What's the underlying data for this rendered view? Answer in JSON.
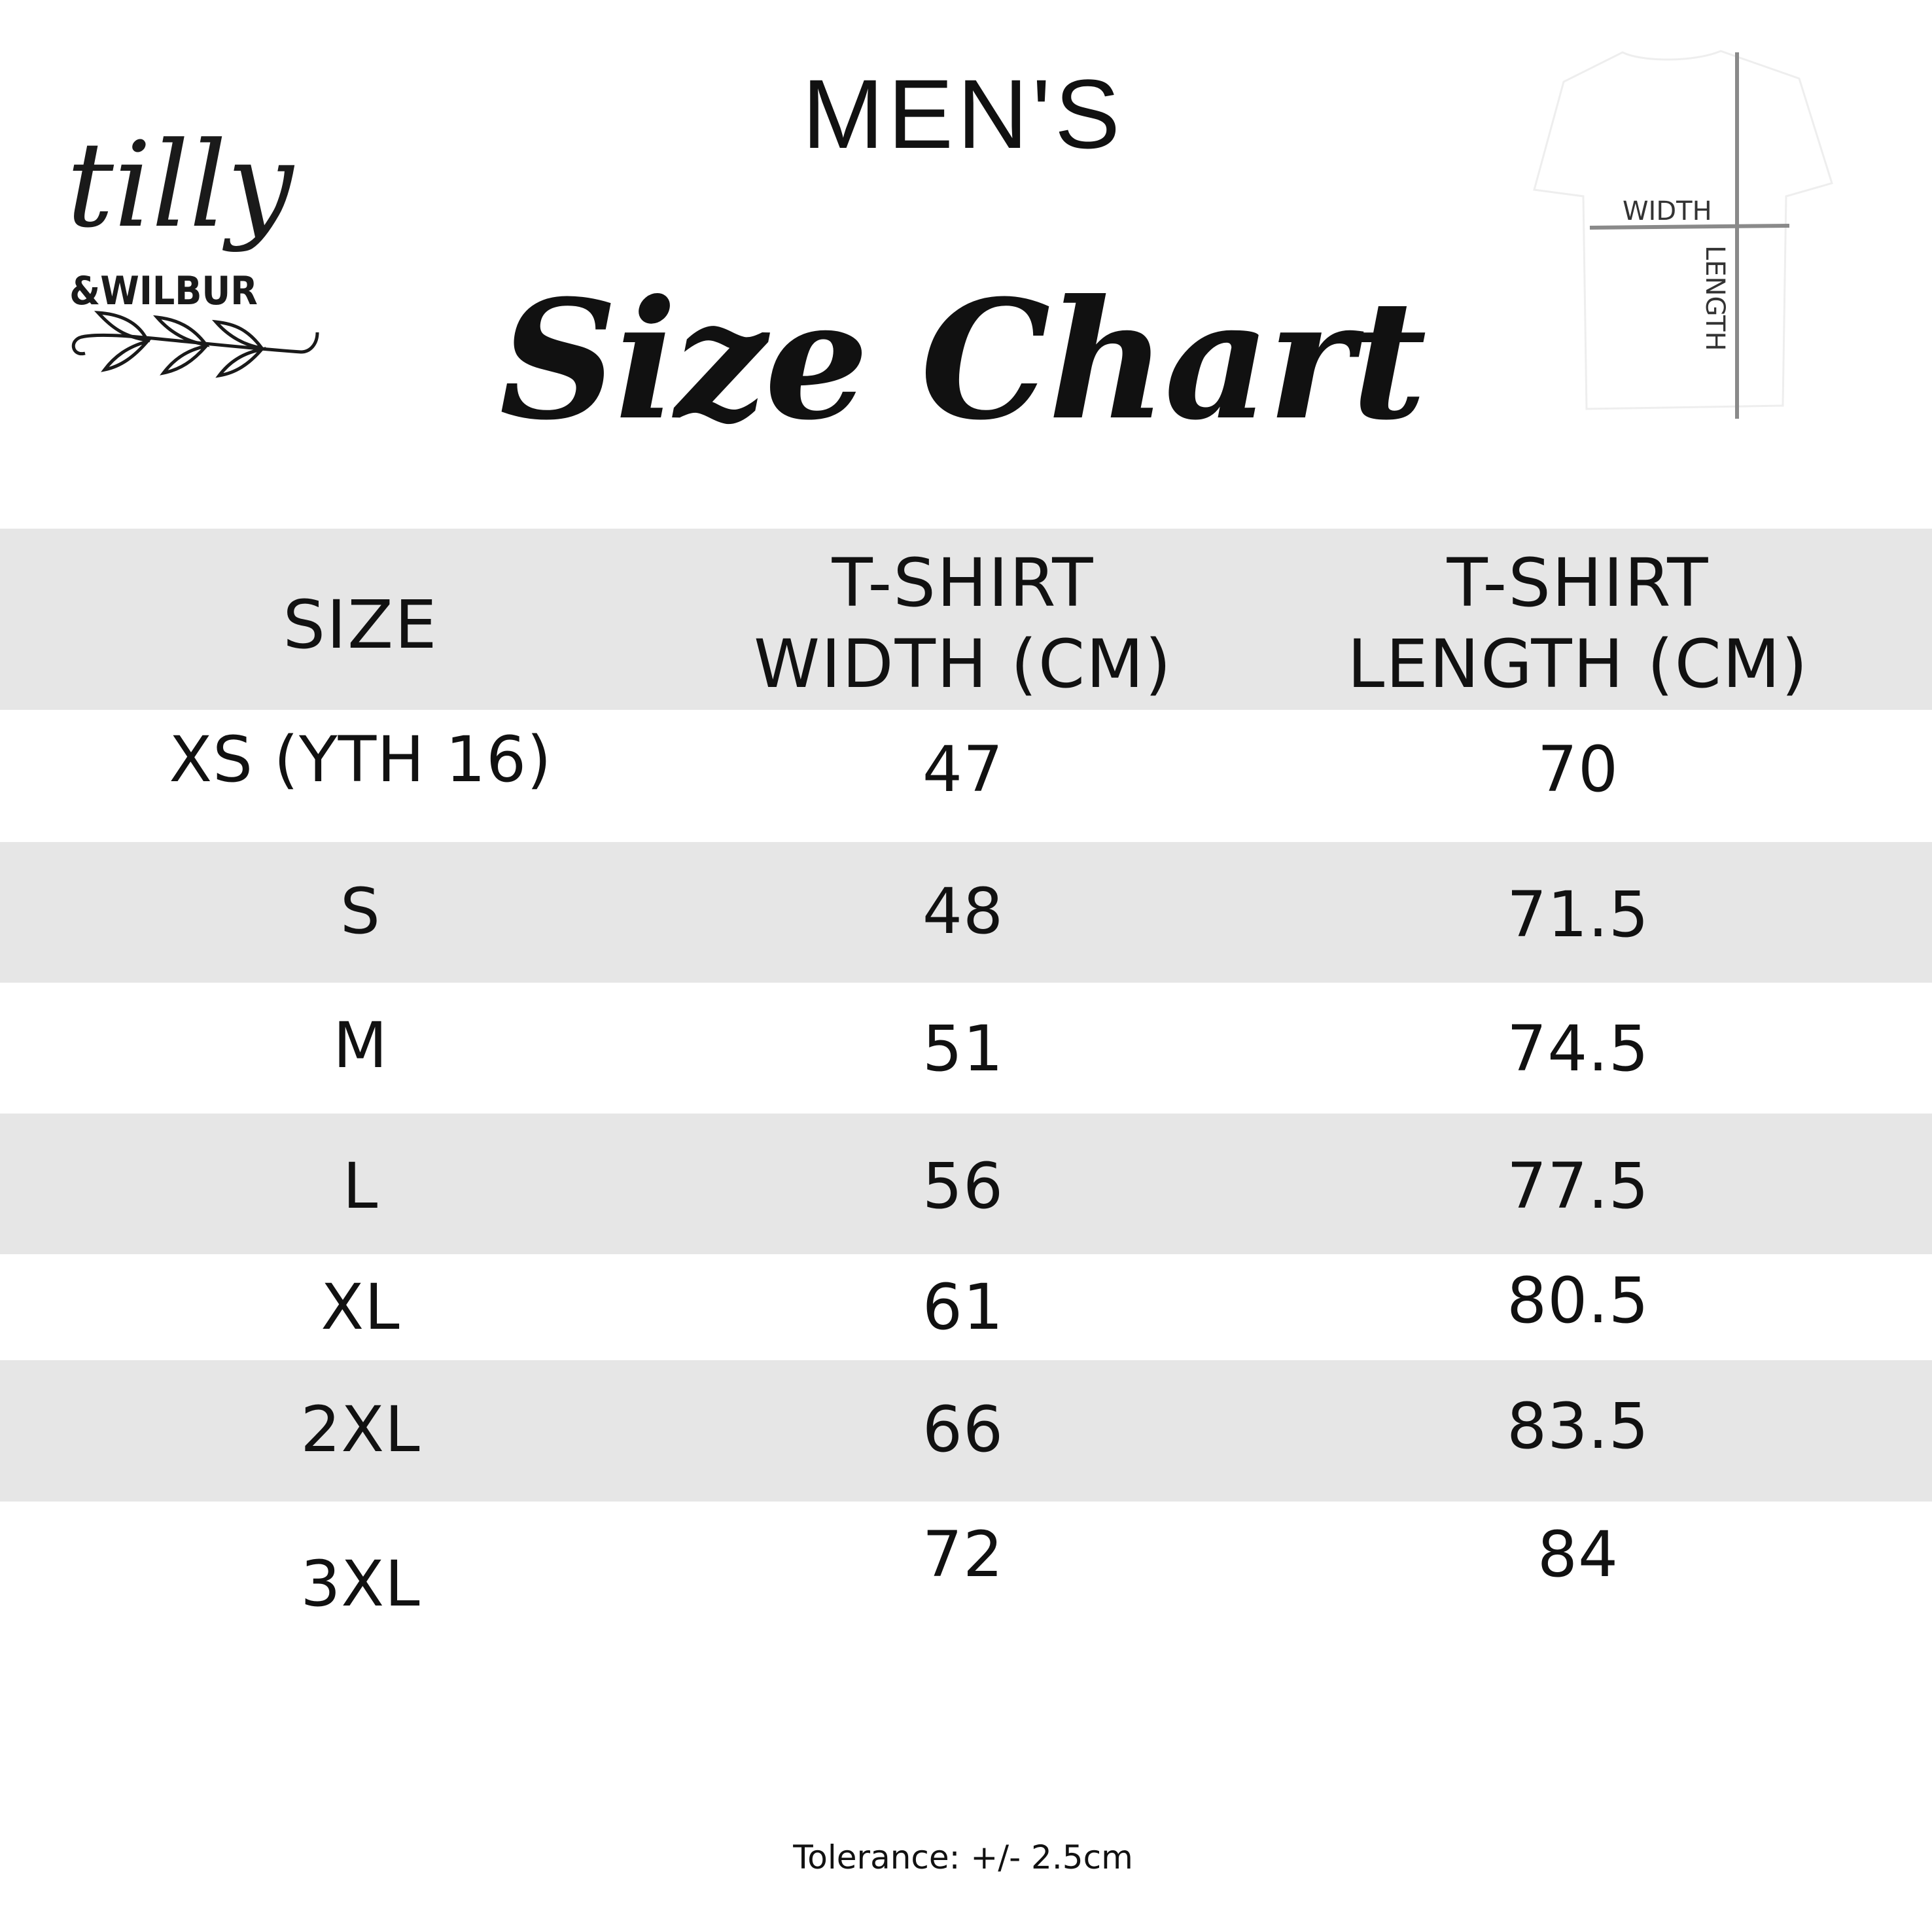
{
  "logo": {
    "line1": "tilly",
    "line2": "&WILBUR"
  },
  "heading": {
    "subtitle": "MEN'S",
    "title": "Size Chart"
  },
  "diagram": {
    "width_label": "WIDTH",
    "length_label": "LENGTH",
    "line_color": "#8a8a8a"
  },
  "table": {
    "headers": [
      "SIZE",
      "T-SHIRT\nWIDTH (CM)",
      "T-SHIRT\nLENGTH (CM)"
    ],
    "stripe_color": "#e6e6e6",
    "rows": [
      {
        "size": "XS (YTH 16)",
        "width": "47",
        "length": "70"
      },
      {
        "size": "S",
        "width": "48",
        "length": "71.5"
      },
      {
        "size": "M",
        "width": "51",
        "length": "74.5"
      },
      {
        "size": "L",
        "width": "56",
        "length": "77.5"
      },
      {
        "size": "XL",
        "width": "61",
        "length": "80.5"
      },
      {
        "size": "2XL",
        "width": "66",
        "length": "83.5"
      },
      {
        "size": "3XL",
        "width": "72",
        "length": "84"
      }
    ]
  },
  "footer": {
    "tolerance": "Tolerance: +/- 2.5cm"
  }
}
